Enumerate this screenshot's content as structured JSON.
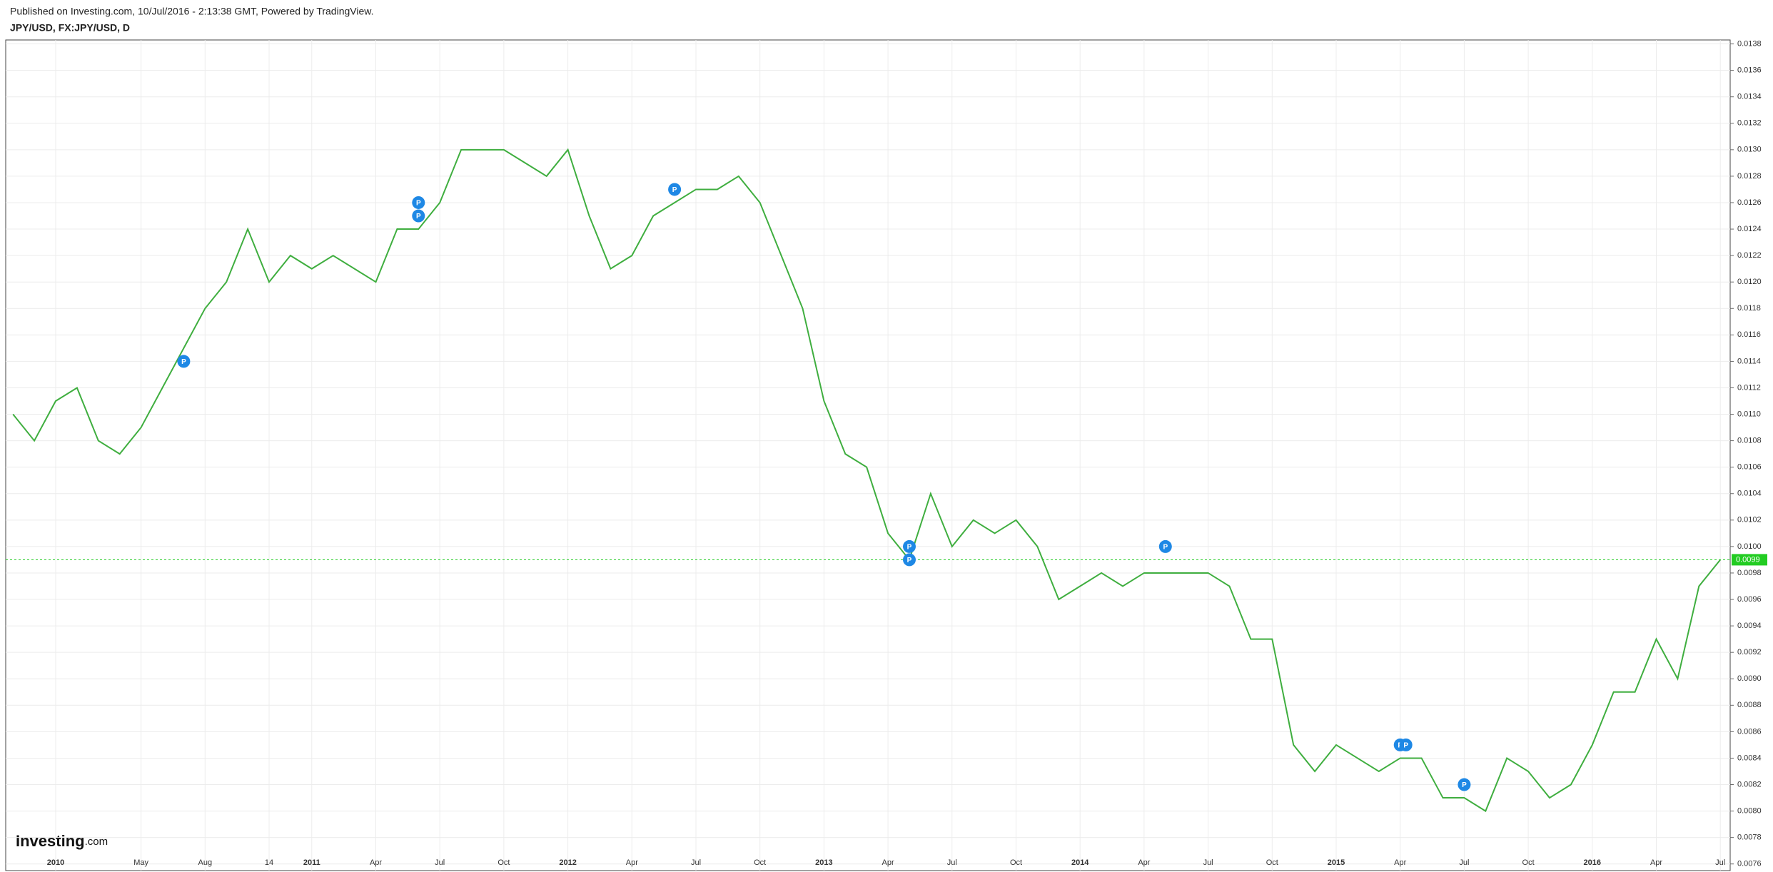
{
  "header": {
    "published": "Published on Investing.com, 10/Jul/2016 - 2:13:38 GMT, Powered by TradingView.",
    "symbol": "JPY/USD, FX:JPY/USD, D"
  },
  "watermark": [
    "Investing",
    ".com"
  ],
  "chart_data": {
    "type": "line",
    "x": [
      "2009-11",
      "2009-12",
      "2010-01",
      "2010-02",
      "2010-03",
      "2010-04",
      "2010-05",
      "2010-06",
      "2010-07",
      "2010-08",
      "2010-09",
      "2010-10",
      "2010-11",
      "2010-12",
      "2011-01",
      "2011-02",
      "2011-03",
      "2011-04",
      "2011-05",
      "2011-06",
      "2011-07",
      "2011-08",
      "2011-09",
      "2011-10",
      "2011-11",
      "2011-12",
      "2012-01",
      "2012-02",
      "2012-03",
      "2012-04",
      "2012-05",
      "2012-06",
      "2012-07",
      "2012-08",
      "2012-09",
      "2012-10",
      "2012-11",
      "2012-12",
      "2013-01",
      "2013-02",
      "2013-03",
      "2013-04",
      "2013-05",
      "2013-06",
      "2013-07",
      "2013-08",
      "2013-09",
      "2013-10",
      "2013-11",
      "2013-12",
      "2014-01",
      "2014-02",
      "2014-03",
      "2014-04",
      "2014-05",
      "2014-06",
      "2014-07",
      "2014-08",
      "2014-09",
      "2014-10",
      "2014-11",
      "2014-12",
      "2015-01",
      "2015-02",
      "2015-03",
      "2015-04",
      "2015-05",
      "2015-06",
      "2015-07",
      "2015-08",
      "2015-09",
      "2015-10",
      "2015-11",
      "2015-12",
      "2016-01",
      "2016-02",
      "2016-03",
      "2016-04",
      "2016-05",
      "2016-06",
      "2016-07"
    ],
    "series": [
      {
        "name": "JPY/USD",
        "color": "#3fae3f",
        "values": [
          0.011,
          0.0108,
          0.0111,
          0.0112,
          0.0108,
          0.0107,
          0.0109,
          0.0112,
          0.0115,
          0.0118,
          0.012,
          0.0124,
          0.012,
          0.0122,
          0.0121,
          0.0122,
          0.0121,
          0.012,
          0.0124,
          0.0124,
          0.0126,
          0.013,
          0.013,
          0.013,
          0.0129,
          0.0128,
          0.013,
          0.0125,
          0.0121,
          0.0122,
          0.0125,
          0.0126,
          0.0127,
          0.0127,
          0.0128,
          0.0126,
          0.0122,
          0.0118,
          0.0111,
          0.0107,
          0.0106,
          0.0101,
          0.0099,
          0.0104,
          0.01,
          0.0102,
          0.0101,
          0.0102,
          0.01,
          0.0096,
          0.0097,
          0.0098,
          0.0097,
          0.0098,
          0.0098,
          0.0098,
          0.0098,
          0.0097,
          0.0093,
          0.0093,
          0.0085,
          0.0083,
          0.0085,
          0.0084,
          0.0083,
          0.0084,
          0.0084,
          0.0081,
          0.0081,
          0.008,
          0.0084,
          0.0083,
          0.0081,
          0.0082,
          0.0085,
          0.0089,
          0.0089,
          0.0093,
          0.009,
          0.0097,
          0.0099
        ]
      }
    ],
    "xticks": [
      {
        "value": "2010-01",
        "label": "2010"
      },
      {
        "value": "2010-05",
        "label": "May"
      },
      {
        "value": "2010-08",
        "label": "Aug"
      },
      {
        "value": "2010-11",
        "label": "14"
      },
      {
        "value": "2011-01",
        "label": "2011"
      },
      {
        "value": "2011-04",
        "label": "Apr"
      },
      {
        "value": "2011-07",
        "label": "Jul"
      },
      {
        "value": "2011-10",
        "label": "Oct"
      },
      {
        "value": "2012-01",
        "label": "2012"
      },
      {
        "value": "2012-04",
        "label": "Apr"
      },
      {
        "value": "2012-07",
        "label": "Jul"
      },
      {
        "value": "2012-10",
        "label": "Oct"
      },
      {
        "value": "2013-01",
        "label": "2013"
      },
      {
        "value": "2013-04",
        "label": "Apr"
      },
      {
        "value": "2013-07",
        "label": "Jul"
      },
      {
        "value": "2013-10",
        "label": "Oct"
      },
      {
        "value": "2014-01",
        "label": "2014"
      },
      {
        "value": "2014-04",
        "label": "Apr"
      },
      {
        "value": "2014-07",
        "label": "Jul"
      },
      {
        "value": "2014-10",
        "label": "Oct"
      },
      {
        "value": "2015-01",
        "label": "2015"
      },
      {
        "value": "2015-04",
        "label": "Apr"
      },
      {
        "value": "2015-07",
        "label": "Jul"
      },
      {
        "value": "2015-10",
        "label": "Oct"
      },
      {
        "value": "2016-01",
        "label": "2016"
      },
      {
        "value": "2016-04",
        "label": "Apr"
      },
      {
        "value": "2016-07",
        "label": "Jul"
      }
    ],
    "ylim": [
      0.00755,
      0.01383
    ],
    "yticks": [
      0.0076,
      0.0078,
      {
        "value": 0.008,
        "label": "0.0080"
      },
      0.0082,
      0.0084,
      0.0086,
      0.0088,
      {
        "value": 0.009,
        "label": "0.0090"
      },
      0.0092,
      0.0094,
      0.0096,
      0.0098,
      {
        "value": 0.01,
        "label": "0.0100"
      },
      0.0102,
      0.0104,
      0.0106,
      0.0108,
      {
        "value": 0.011,
        "label": "0.0110"
      },
      0.0112,
      0.0114,
      0.0116,
      0.0118,
      {
        "value": 0.012,
        "label": "0.0120"
      },
      0.0122,
      0.0124,
      0.0126,
      0.0128,
      {
        "value": 0.013,
        "label": "0.0130"
      },
      0.0132,
      0.0134,
      0.0136,
      0.0138
    ],
    "grid": true,
    "last_value": 0.0099,
    "last_value_color": "#22cc22",
    "annotations": [
      {
        "x": "2010-07",
        "y": 0.0114,
        "label": "P"
      },
      {
        "x": "2011-06",
        "y": 0.0126,
        "label": "P"
      },
      {
        "x": "2011-06",
        "y": 0.0125,
        "label": "P"
      },
      {
        "x": "2012-06",
        "y": 0.0127,
        "label": "P"
      },
      {
        "x": "2013-05",
        "y": 0.01,
        "label": "P"
      },
      {
        "x": "2013-05",
        "y": 0.0099,
        "label": "P"
      },
      {
        "x": "2014-05",
        "y": 0.01,
        "label": "P"
      },
      {
        "x": "2015-04",
        "y": 0.0085,
        "label": "P"
      },
      {
        "x": "2015-04",
        "y": 0.0085,
        "label": "P"
      },
      {
        "x": "2015-07",
        "y": 0.0082,
        "label": "P"
      }
    ]
  }
}
